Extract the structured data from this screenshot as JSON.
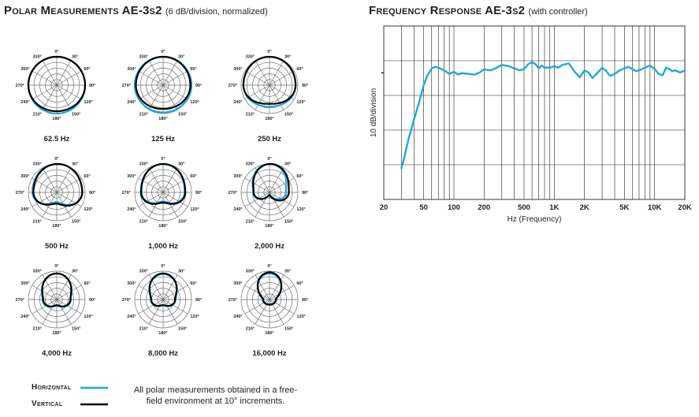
{
  "polar_title": "Polar Measurements AE-3s2",
  "polar_subtitle": "(6 dB/division, normalized)",
  "freq_title": "Frequency Response AE-3s2",
  "freq_subtitle": "(with controller)",
  "legend": {
    "horizontal": "Horizontal",
    "vertical": "Vertical",
    "note": "All polar measurements obtained in a free-field environment at 10° increments.",
    "horizontal_color": "#1fa8dc",
    "vertical_color": "#000000"
  },
  "chart_data": [
    {
      "type": "polar",
      "title": "Polar Measurements AE-3s2",
      "subtitle": "(6 dB/division, normalized)",
      "radial_division_db": 6,
      "angle_labels": [
        "0°",
        "30°",
        "60°",
        "90°",
        "120°",
        "150°",
        "180°",
        "210°",
        "240°",
        "270°",
        "300°",
        "330°"
      ],
      "series_names": [
        "Horizontal",
        "Vertical"
      ],
      "plots": [
        {
          "label": "62.5 Hz",
          "horizontal": {
            "front": 5,
            "side": 5,
            "back": 5,
            "skew": 0
          },
          "vertical": {
            "front": 5,
            "side": 5,
            "back": 4.6,
            "skew": 0
          }
        },
        {
          "label": "125 Hz",
          "horizontal": {
            "front": 5,
            "side": 5,
            "back": 4.8,
            "skew": 0
          },
          "vertical": {
            "front": 5,
            "side": 4.8,
            "back": 4.2,
            "skew": 0
          }
        },
        {
          "label": "250 Hz",
          "horizontal": {
            "front": 5,
            "side": 4.6,
            "back": 3.8,
            "skew": 0
          },
          "vertical": {
            "front": 5,
            "side": 4.6,
            "back": 3.3,
            "skew": 0
          }
        },
        {
          "label": "500 Hz",
          "horizontal": {
            "front": 5,
            "side": 4.4,
            "back": 1.7,
            "skew": 0.1
          },
          "vertical": {
            "front": 5,
            "side": 4.3,
            "back": 2.0,
            "skew": 0.15
          }
        },
        {
          "label": "1,000 Hz",
          "horizontal": {
            "front": 5,
            "side": 3.8,
            "back": 1.6,
            "skew": 0
          },
          "vertical": {
            "front": 5,
            "side": 3.9,
            "back": 1.8,
            "skew": 0
          }
        },
        {
          "label": "2,000 Hz",
          "horizontal": {
            "front": 5,
            "side": 2.9,
            "back": 0.4,
            "skew": 0
          },
          "vertical": {
            "front": 5,
            "side": 3.1,
            "back": 0.5,
            "skew": 0.25
          }
        },
        {
          "label": "4,000 Hz",
          "horizontal": {
            "front": 4.6,
            "side": 2.5,
            "back": 1.1,
            "skew": 0
          },
          "vertical": {
            "front": 4.6,
            "side": 2.4,
            "back": 1.0,
            "skew": 0
          }
        },
        {
          "label": "8,000 Hz",
          "horizontal": {
            "front": 4.5,
            "side": 2.2,
            "back": 1.0,
            "skew": 0
          },
          "vertical": {
            "front": 4.6,
            "side": 2.1,
            "back": 1.0,
            "skew": 0
          }
        },
        {
          "label": "16,000 Hz",
          "horizontal": {
            "front": 4.6,
            "side": 1.2,
            "back": 0.8,
            "skew": 0
          },
          "vertical": {
            "front": 4.8,
            "side": 1.1,
            "back": 0.9,
            "skew": 0
          }
        }
      ]
    },
    {
      "type": "line",
      "title": "Frequency Response AE-3s2",
      "subtitle": "(with controller)",
      "xlabel": "Hz (Frequency)",
      "ylabel": "10 dB/division",
      "xscale": "log",
      "xlim": [
        20,
        20000
      ],
      "x_tick_labels": [
        "20",
        "50",
        "100",
        "200",
        "500",
        "1K",
        "2K",
        "5K",
        "10K",
        "20K"
      ],
      "x_tick_values": [
        20,
        50,
        100,
        200,
        500,
        1000,
        2000,
        5000,
        10000,
        20000
      ],
      "y_divisions": 5,
      "y_units": "divisions from bottom",
      "series_color": "#1fa8dc",
      "x": [
        30,
        32,
        35,
        40,
        45,
        50,
        55,
        60,
        65,
        70,
        80,
        90,
        100,
        110,
        120,
        140,
        160,
        180,
        200,
        230,
        260,
        300,
        350,
        400,
        450,
        500,
        550,
        600,
        650,
        700,
        750,
        800,
        900,
        1000,
        1100,
        1200,
        1400,
        1600,
        1800,
        2000,
        2200,
        2400,
        2700,
        3000,
        3300,
        3600,
        4000,
        4500,
        5000,
        5500,
        6000,
        6500,
        7000,
        8000,
        9000,
        10000,
        11000,
        12000,
        13000,
        14000,
        15000,
        16000,
        18000,
        20000
      ],
      "y": [
        0.9,
        1.2,
        1.7,
        2.3,
        2.8,
        3.3,
        3.6,
        3.78,
        3.82,
        3.8,
        3.72,
        3.62,
        3.68,
        3.6,
        3.64,
        3.62,
        3.6,
        3.66,
        3.75,
        3.72,
        3.78,
        3.88,
        3.84,
        3.78,
        3.72,
        3.76,
        3.9,
        3.96,
        3.9,
        3.78,
        3.86,
        3.8,
        3.8,
        3.84,
        3.8,
        3.88,
        3.92,
        3.68,
        3.52,
        3.72,
        3.66,
        3.5,
        3.65,
        3.8,
        3.7,
        3.56,
        3.62,
        3.72,
        3.78,
        3.82,
        3.76,
        3.7,
        3.72,
        3.8,
        3.86,
        3.76,
        3.62,
        3.58,
        3.8,
        3.76,
        3.7,
        3.72,
        3.66,
        3.72
      ]
    }
  ]
}
